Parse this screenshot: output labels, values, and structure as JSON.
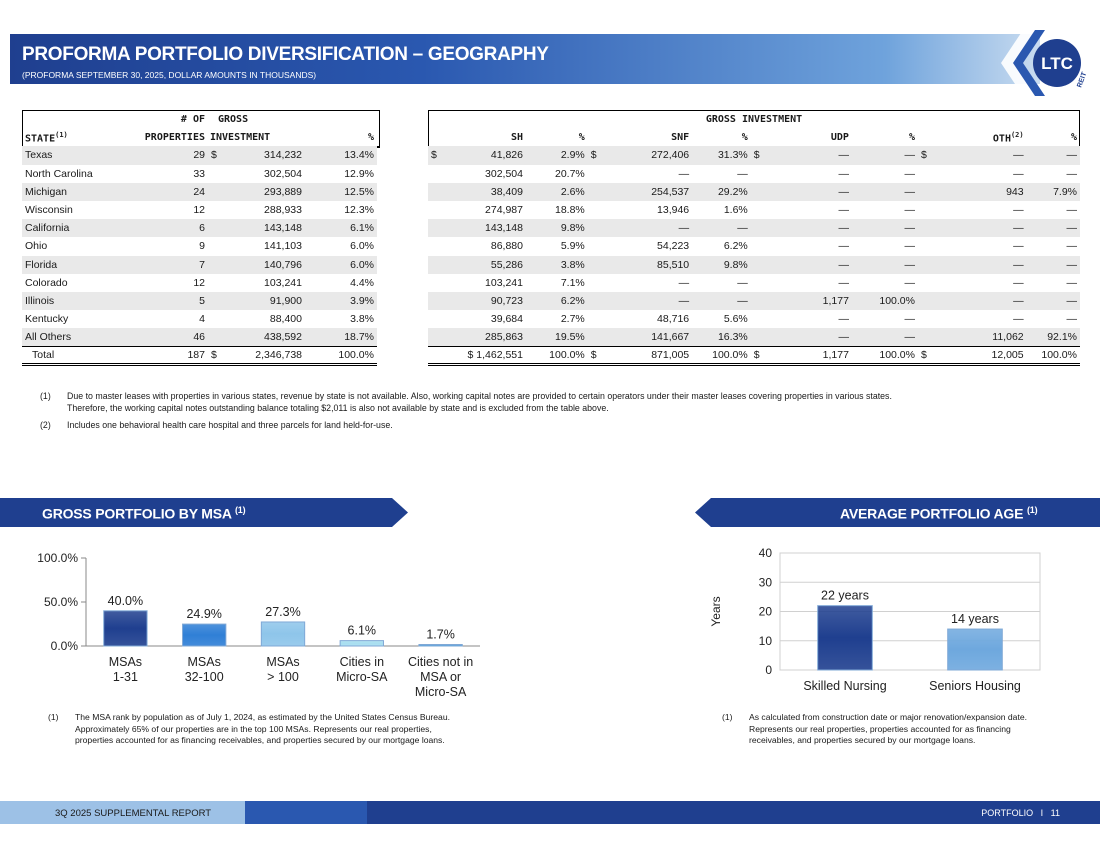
{
  "header": {
    "title": "PROFORMA PORTFOLIO DIVERSIFICATION – GEOGRAPHY",
    "subtitle": "(PROFORMA SEPTEMBER 30, 2025, DOLLAR AMOUNTS IN THOUSANDS)",
    "logo_text": "LTC",
    "logo_sub": "REIT"
  },
  "left_table": {
    "headers": {
      "r1": [
        "",
        "# OF",
        "GROSS",
        ""
      ],
      "r2": [
        "STATE",
        "PROPERTIES",
        "INVESTMENT",
        "%"
      ],
      "state_sup": "(1)"
    },
    "rows": [
      [
        "Texas",
        "29",
        "$",
        "314,232",
        "13.4%"
      ],
      [
        "North Carolina",
        "33",
        "",
        "302,504",
        "12.9%"
      ],
      [
        "Michigan",
        "24",
        "",
        "293,889",
        "12.5%"
      ],
      [
        "Wisconsin",
        "12",
        "",
        "288,933",
        "12.3%"
      ],
      [
        "California",
        "6",
        "",
        "143,148",
        "6.1%"
      ],
      [
        "Ohio",
        "9",
        "",
        "141,103",
        "6.0%"
      ],
      [
        "Florida",
        "7",
        "",
        "140,796",
        "6.0%"
      ],
      [
        "Colorado",
        "12",
        "",
        "103,241",
        "4.4%"
      ],
      [
        "Illinois",
        "5",
        "",
        "91,900",
        "3.9%"
      ],
      [
        "Kentucky",
        "4",
        "",
        "88,400",
        "3.8%"
      ],
      [
        "All Others",
        "46",
        "",
        "438,592",
        "18.7%"
      ]
    ],
    "total": [
      "Total",
      "187",
      "$",
      "2,346,738",
      "100.0%"
    ]
  },
  "right_table": {
    "group_header": "GROSS INVESTMENT",
    "headers": [
      "SH",
      "%",
      "SNF",
      "%",
      "UDP",
      "%",
      "OTH",
      "%"
    ],
    "oth_sup": "(2)",
    "rows": [
      [
        "$",
        "41,826",
        "2.9%",
        "$",
        "272,406",
        "31.3%",
        "$",
        "—",
        "—",
        "$",
        "—",
        "—"
      ],
      [
        "",
        "302,504",
        "20.7%",
        "",
        "—",
        "—",
        "",
        "—",
        "—",
        "",
        "—",
        "—"
      ],
      [
        "",
        "38,409",
        "2.6%",
        "",
        "254,537",
        "29.2%",
        "",
        "—",
        "—",
        "",
        "943",
        "7.9%"
      ],
      [
        "",
        "274,987",
        "18.8%",
        "",
        "13,946",
        "1.6%",
        "",
        "—",
        "—",
        "",
        "—",
        "—"
      ],
      [
        "",
        "143,148",
        "9.8%",
        "",
        "—",
        "—",
        "",
        "—",
        "—",
        "",
        "—",
        "—"
      ],
      [
        "",
        "86,880",
        "5.9%",
        "",
        "54,223",
        "6.2%",
        "",
        "—",
        "—",
        "",
        "—",
        "—"
      ],
      [
        "",
        "55,286",
        "3.8%",
        "",
        "85,510",
        "9.8%",
        "",
        "—",
        "—",
        "",
        "—",
        "—"
      ],
      [
        "",
        "103,241",
        "7.1%",
        "",
        "—",
        "—",
        "",
        "—",
        "—",
        "",
        "—",
        "—"
      ],
      [
        "",
        "90,723",
        "6.2%",
        "",
        "—",
        "—",
        "",
        "1,177",
        "100.0%",
        "",
        "—",
        "—"
      ],
      [
        "",
        "39,684",
        "2.7%",
        "",
        "48,716",
        "5.6%",
        "",
        "—",
        "—",
        "",
        "—",
        "—"
      ],
      [
        "",
        "285,863",
        "19.5%",
        "",
        "141,667",
        "16.3%",
        "",
        "—",
        "—",
        "",
        "11,062",
        "92.1%"
      ]
    ],
    "total": [
      "",
      "$ 1,462,551",
      "100.0%",
      "$",
      "871,005",
      "100.0%",
      "$",
      "1,177",
      "100.0%",
      "$",
      "12,005",
      "100.0%"
    ]
  },
  "footnotes": [
    {
      "n": "(1)",
      "text": "Due to master leases with properties in various states, revenue by state is not available. Also, working capital notes are provided to certain operators under their master leases covering properties in various states.",
      "text2": "Therefore, the working capital notes outstanding balance totaling $2,011 is also not available by state and is excluded from the table above."
    },
    {
      "n": "(2)",
      "text": "Includes one behavioral health care hospital and three parcels for land held-for-use."
    }
  ],
  "msa_section": {
    "title": "GROSS PORTFOLIO BY MSA",
    "sup": "(1)",
    "footnote_n": "(1)",
    "footnote": [
      "The MSA rank by population as of July 1, 2024, as estimated by the United States Census Bureau.",
      "Approximately 65% of our properties are in the top 100 MSAs. Represents our real properties,",
      "properties accounted for as financing receivables, and properties secured by our mortgage loans."
    ]
  },
  "age_section": {
    "title": "AVERAGE PORTFOLIO AGE",
    "sup": "(1)",
    "footnote_n": "(1)",
    "footnote": [
      "As calculated from construction date or major renovation/expansion date.",
      "Represents our real properties, properties accounted for as financing",
      "receivables, and properties secured by our mortgage loans."
    ]
  },
  "chart_data": [
    {
      "type": "bar",
      "title": "GROSS PORTFOLIO BY MSA",
      "categories": [
        [
          "MSAs",
          "1-31"
        ],
        [
          "MSAs",
          "32-100"
        ],
        [
          "MSAs",
          "> 100"
        ],
        [
          "Cities in",
          "Micro-SA"
        ],
        [
          "Cities not in",
          "MSA or",
          "Micro-SA"
        ]
      ],
      "values": [
        40.0,
        24.9,
        27.3,
        6.1,
        1.7
      ],
      "labels": [
        "40.0%",
        "24.9%",
        "27.3%",
        "6.1%",
        "1.7%"
      ],
      "colors": [
        "#1f3f8f",
        "#2f7fd6",
        "#8ec5ea",
        "#a8def0",
        "#5aa9e0"
      ],
      "yticks": [
        "0.0%",
        "50.0%",
        "100.0%"
      ],
      "ylim": [
        0,
        100
      ],
      "xlabel": "",
      "ylabel": ""
    },
    {
      "type": "bar",
      "title": "AVERAGE PORTFOLIO AGE",
      "categories": [
        [
          "Skilled Nursing"
        ],
        [
          "Seniors Housing"
        ]
      ],
      "values": [
        22,
        14
      ],
      "labels": [
        "22 years",
        "14 years"
      ],
      "colors": [
        "#1f3f8f",
        "#6ea8de"
      ],
      "yticks": [
        "0",
        "10",
        "20",
        "30",
        "40"
      ],
      "ylim": [
        0,
        40
      ],
      "xlabel": "",
      "ylabel": "Years",
      "grid": true
    }
  ],
  "footer": {
    "left": "3Q 2025 SUPPLEMENTAL REPORT",
    "right_label": "PORTFOLIO",
    "separator": "I",
    "page": "11"
  }
}
